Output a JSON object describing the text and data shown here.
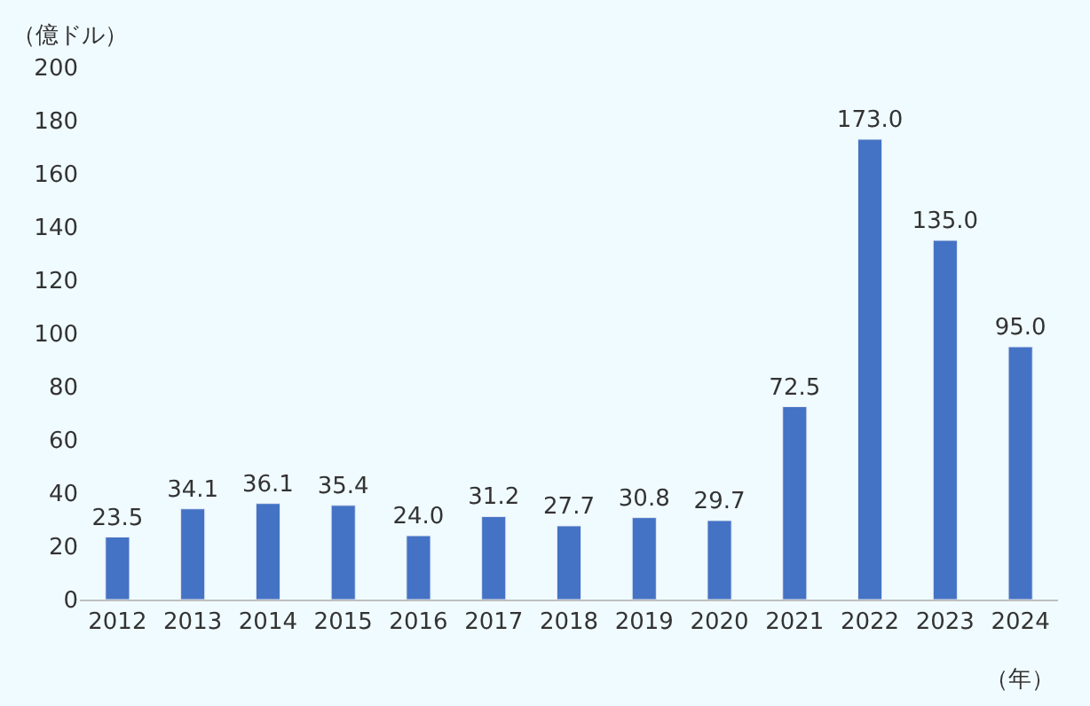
{
  "chart_data": {
    "type": "bar",
    "ylabel": "（億ドル）",
    "xlabel": "（年）",
    "categories": [
      "2012",
      "2013",
      "2014",
      "2015",
      "2016",
      "2017",
      "2018",
      "2019",
      "2020",
      "2021",
      "2022",
      "2023",
      "2024"
    ],
    "values": [
      23.5,
      34.1,
      36.1,
      35.4,
      24.0,
      31.2,
      27.7,
      30.8,
      29.7,
      72.5,
      173.0,
      135.0,
      95.0
    ],
    "value_labels": [
      "23.5",
      "34.1",
      "36.1",
      "35.4",
      "24.0",
      "31.2",
      "27.7",
      "30.8",
      "29.7",
      "72.5",
      "173.0",
      "135.0",
      "95.0"
    ],
    "color": "#4472c4",
    "ylim": [
      0,
      200
    ],
    "yticks": [
      0,
      20,
      40,
      60,
      80,
      100,
      120,
      140,
      160,
      180,
      200
    ],
    "grid": false,
    "legend": false
  }
}
